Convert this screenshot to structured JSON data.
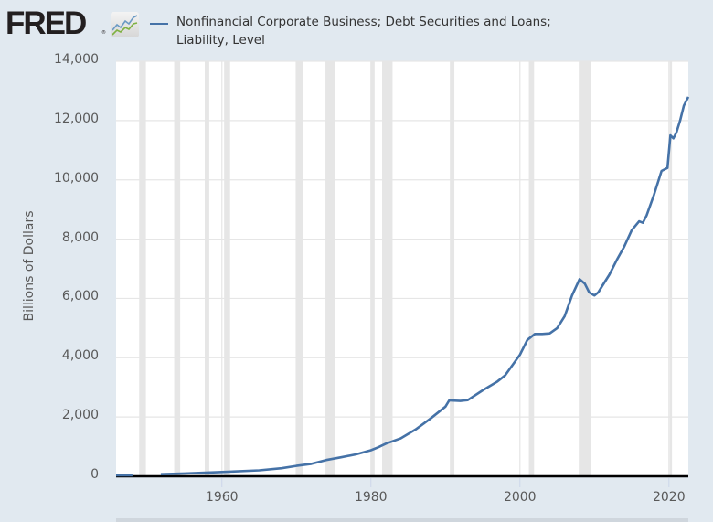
{
  "header": {
    "logo_text": "FRED",
    "logo_reg": "®",
    "logo_icon": "fred-chart-icon"
  },
  "legend": {
    "line1": "Nonfinancial Corporate Business; Debt Securities and Loans;",
    "line2": "Liability, Level",
    "color": "#4572a7"
  },
  "axes": {
    "ylabel": "Billions of Dollars",
    "yticks": [
      "14,000",
      "12,000",
      "10,000",
      "8,000",
      "6,000",
      "4,000",
      "2,000",
      "0"
    ],
    "xticks": [
      "1960",
      "1980",
      "2000",
      "2020"
    ]
  },
  "chart_data": {
    "type": "line",
    "title": "Nonfinancial Corporate Business; Debt Securities and Loans; Liability, Level",
    "xlabel": "",
    "ylabel": "Billions of Dollars",
    "ylim": [
      0,
      14000
    ],
    "xlim": [
      1945.8,
      2022.6
    ],
    "grid": true,
    "legend_position": "top",
    "line_color": "#4572a7",
    "recessions": [
      [
        1948.9,
        1949.8
      ],
      [
        1953.6,
        1954.4
      ],
      [
        1957.7,
        1958.3
      ],
      [
        1960.3,
        1961.1
      ],
      [
        1969.9,
        1970.9
      ],
      [
        1973.9,
        1975.2
      ],
      [
        1980.0,
        1980.5
      ],
      [
        1981.5,
        1982.9
      ],
      [
        1990.6,
        1991.2
      ],
      [
        2001.2,
        2001.9
      ],
      [
        2007.9,
        2009.5
      ],
      [
        2020.1,
        2020.3
      ]
    ],
    "series": [
      {
        "name": "Nonfinancial Corporate Business; Debt Securities and Loans; Liability, Level",
        "segments": [
          {
            "x": [
              1945.8,
              1948.0
            ],
            "values": [
              30,
              30
            ]
          },
          {
            "x": [
              1951.8,
              1955,
              1960,
              1965,
              1968,
              1970,
              1972,
              1974,
              1976,
              1978,
              1980,
              1981,
              1982,
              1984,
              1986,
              1988,
              1990,
              1990.5,
              1992,
              1993,
              1995,
              1997,
              1998,
              2000,
              2001,
              2002,
              2003,
              2004,
              2005,
              2006,
              2007,
              2008,
              2008.7,
              2009.3,
              2010,
              2010.5,
              2011,
              2012,
              2013,
              2014,
              2015,
              2016,
              2016.5,
              2017,
              2018,
              2019,
              2019.8,
              2020.2,
              2020.6,
              2021,
              2021.5,
              2022,
              2022.6
            ],
            "values": [
              70,
              95,
              145,
              200,
              270,
              350,
              420,
              550,
              640,
              740,
              880,
              980,
              1100,
              1280,
              1580,
              1950,
              2350,
              2560,
              2540,
              2570,
              2900,
              3200,
              3400,
              4100,
              4600,
              4800,
              4800,
              4820,
              5000,
              5400,
              6100,
              6650,
              6500,
              6200,
              6100,
              6200,
              6400,
              6800,
              7300,
              7750,
              8300,
              8600,
              8550,
              8800,
              9500,
              10300,
              10400,
              11500,
              11400,
              11600,
              12000,
              12500,
              12800
            ]
          }
        ]
      }
    ]
  }
}
